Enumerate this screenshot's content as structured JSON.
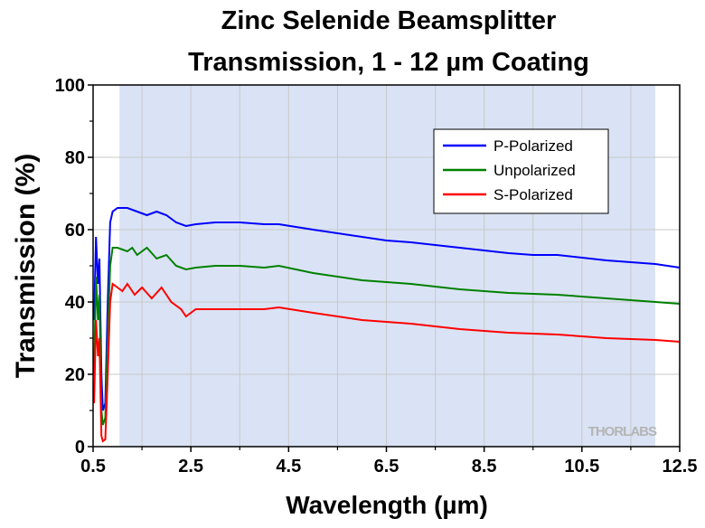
{
  "chart_data": {
    "type": "line",
    "title": [
      "Zinc Selenide Beamsplitter",
      "Transmission, 1 - 12 µm Coating"
    ],
    "xlabel": "Wavelength (µm)",
    "ylabel": "Transmission (%)",
    "watermark": "THORLABS",
    "xlim": [
      0.5,
      12.5
    ],
    "ylim": [
      0,
      100
    ],
    "xticks": [
      0.5,
      2.5,
      4.5,
      6.5,
      8.5,
      10.5,
      12.5
    ],
    "xminor_ticks": [
      1.5,
      3.5,
      5.5,
      7.5,
      9.5,
      11.5
    ],
    "yticks": [
      0,
      20,
      40,
      60,
      80,
      100
    ],
    "yminor_ticks": [
      10,
      30,
      50,
      70,
      90
    ],
    "grid": true,
    "shaded_range": [
      1.04,
      12
    ],
    "shaded_color": "#dae3f5",
    "legend": "upper right",
    "series": [
      {
        "name": "P-Polarized",
        "color": "#0000ff",
        "x": [
          0.52,
          0.56,
          0.6,
          0.63,
          0.67,
          0.7,
          0.75,
          0.8,
          0.85,
          0.9,
          1.0,
          1.2,
          1.4,
          1.6,
          1.8,
          2.0,
          2.2,
          2.4,
          2.6,
          3.0,
          3.5,
          4.0,
          4.3,
          5,
          6,
          6.5,
          7,
          8,
          9,
          9.5,
          10,
          11,
          12,
          12.5
        ],
        "values": [
          35,
          58,
          45,
          52,
          20,
          10,
          12,
          40,
          62,
          65,
          66,
          66,
          65,
          64,
          65,
          64,
          62,
          61,
          61.5,
          62,
          62,
          61.5,
          61.5,
          60,
          58,
          57,
          56.5,
          55,
          53.5,
          53,
          53,
          51.5,
          50.5,
          49.5
        ]
      },
      {
        "name": "Unpolarized",
        "color": "#008000",
        "x": [
          0.52,
          0.56,
          0.6,
          0.63,
          0.67,
          0.7,
          0.75,
          0.8,
          0.85,
          0.9,
          1.0,
          1.2,
          1.3,
          1.4,
          1.6,
          1.8,
          2.0,
          2.2,
          2.4,
          2.6,
          3,
          3.5,
          4,
          4.3,
          5,
          6,
          7,
          8,
          9,
          10,
          11,
          12,
          12.5
        ],
        "values": [
          20,
          47,
          35,
          42,
          10,
          6,
          8,
          30,
          50,
          55,
          55,
          54,
          55,
          53,
          55,
          52,
          53,
          50,
          49,
          49.5,
          50,
          50,
          49.5,
          50,
          48,
          46,
          45,
          43.5,
          42.5,
          42,
          41,
          40,
          39.5
        ]
      },
      {
        "name": "S-Polarized",
        "color": "#ff0000",
        "x": [
          0.52,
          0.56,
          0.6,
          0.63,
          0.67,
          0.7,
          0.75,
          0.8,
          0.85,
          0.9,
          1.0,
          1.1,
          1.2,
          1.35,
          1.5,
          1.7,
          1.9,
          2.1,
          2.3,
          2.4,
          2.6,
          3,
          3.5,
          4,
          4.3,
          5,
          6,
          7,
          8,
          9,
          10,
          11,
          12,
          12.5
        ],
        "values": [
          12,
          35,
          25,
          30,
          3,
          1.5,
          2,
          20,
          40,
          45,
          44,
          43,
          45,
          42,
          44,
          41,
          44,
          40,
          38,
          36,
          38,
          38,
          38,
          38,
          38.5,
          37,
          35,
          34,
          32.5,
          31.5,
          31,
          30,
          29.5,
          29
        ]
      }
    ]
  }
}
